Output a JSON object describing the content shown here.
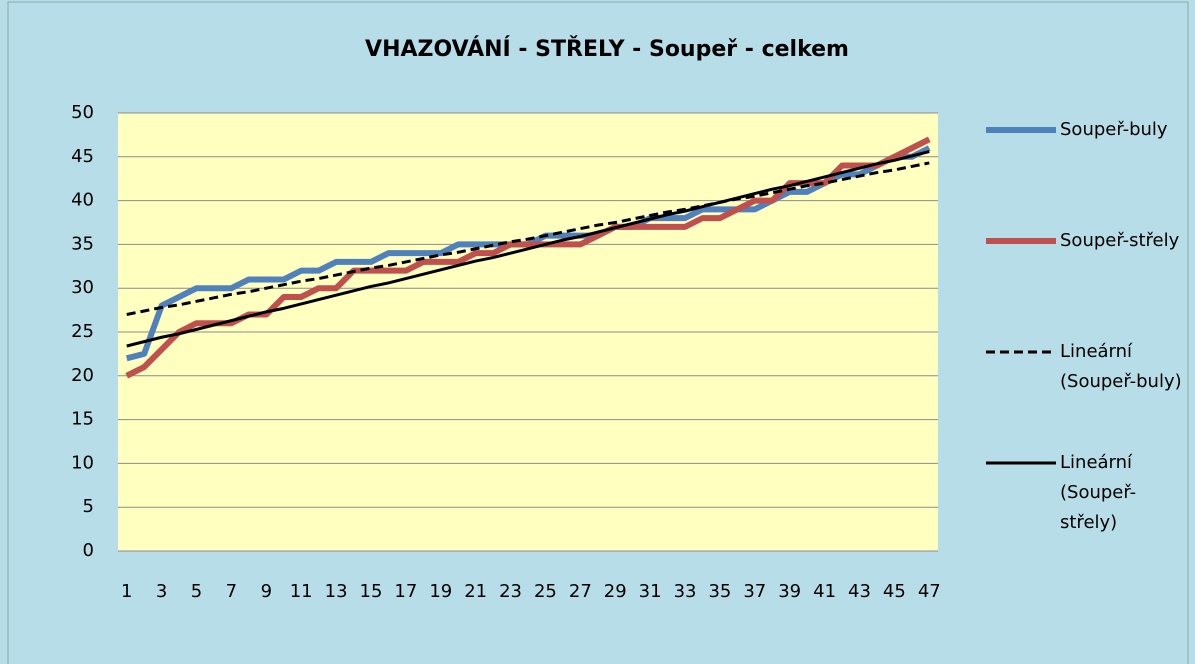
{
  "chart_data": {
    "type": "line",
    "title": "VHAZOVÁNÍ - STŘELY - Soupeř - celkem",
    "categories": [
      1,
      null,
      3,
      null,
      5,
      null,
      7,
      null,
      9,
      null,
      11,
      null,
      13,
      null,
      15,
      null,
      17,
      null,
      19,
      null,
      21,
      null,
      23,
      null,
      25,
      null,
      27,
      null,
      29,
      null,
      31,
      null,
      33,
      null,
      35,
      null,
      37,
      null,
      39,
      null,
      41,
      null,
      43,
      null,
      45,
      null,
      47
    ],
    "ylim": [
      0,
      50
    ],
    "yticks": [
      0,
      5,
      10,
      15,
      20,
      25,
      30,
      35,
      40,
      45,
      50
    ],
    "grid": true,
    "legend": "right",
    "series": [
      {
        "name": "Soupeř-buly",
        "color": "#4f81bd",
        "style": "solid",
        "width": 6,
        "values": [
          22,
          22.5,
          28,
          29,
          30,
          30,
          30,
          31,
          31,
          31,
          32,
          32,
          33,
          33,
          33,
          34,
          34,
          34,
          34,
          35,
          35,
          35,
          35,
          35,
          36,
          36,
          36,
          36,
          37,
          37,
          38,
          38,
          38,
          39,
          39,
          39,
          39,
          40,
          41,
          41,
          42,
          43,
          43,
          44,
          45,
          45,
          46
        ]
      },
      {
        "name": "Soupeř-střely",
        "color": "#c0504d",
        "style": "solid",
        "width": 6,
        "values": [
          20,
          21,
          23,
          25,
          26,
          26,
          26,
          27,
          27,
          29,
          29,
          30,
          30,
          32,
          32,
          32,
          32,
          33,
          33,
          33,
          34,
          34,
          35,
          35,
          35,
          35,
          35,
          36,
          37,
          37,
          37,
          37,
          37,
          38,
          38,
          39,
          40,
          40,
          42,
          42,
          42,
          44,
          44,
          44,
          45,
          46,
          47
        ]
      },
      {
        "name": "Lineární (Soupeř-buly)",
        "color": "#000000",
        "style": "dashed",
        "width": 3,
        "values": [
          27.0,
          27.4,
          27.8,
          28.1,
          28.5,
          28.9,
          29.3,
          29.6,
          30.0,
          30.4,
          30.8,
          31.1,
          31.5,
          31.9,
          32.3,
          32.6,
          33.0,
          33.4,
          33.8,
          34.1,
          34.5,
          34.9,
          35.3,
          35.6,
          36.0,
          36.4,
          36.8,
          37.2,
          37.5,
          37.9,
          38.3,
          38.7,
          39.0,
          39.4,
          39.8,
          40.2,
          40.5,
          40.9,
          41.3,
          41.7,
          42.0,
          42.4,
          42.8,
          43.2,
          43.5,
          43.9,
          44.3
        ]
      },
      {
        "name": "Lineární (Soupeř-střely)",
        "color": "#000000",
        "style": "solid",
        "width": 3,
        "values": [
          23.4,
          23.9,
          24.4,
          24.8,
          25.3,
          25.8,
          26.3,
          26.8,
          27.3,
          27.7,
          28.2,
          28.7,
          29.2,
          29.7,
          30.2,
          30.6,
          31.1,
          31.6,
          32.1,
          32.6,
          33.1,
          33.5,
          34.0,
          34.5,
          35.0,
          35.5,
          35.9,
          36.4,
          36.9,
          37.4,
          37.9,
          38.4,
          38.8,
          39.3,
          39.8,
          40.3,
          40.8,
          41.3,
          41.7,
          42.2,
          42.7,
          43.2,
          43.7,
          44.2,
          44.6,
          45.1,
          45.6
        ]
      }
    ]
  }
}
